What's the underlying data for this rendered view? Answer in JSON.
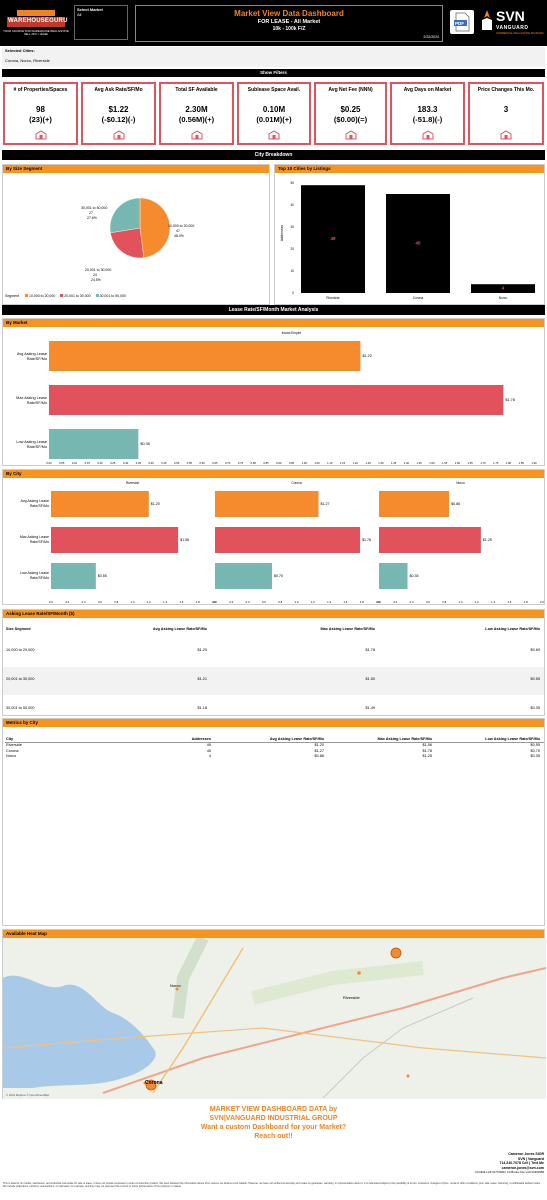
{
  "header": {
    "logo_text": "WAREHOUSEGURU",
    "logo_tagline": "YOUR SOURCE FOR WAREHOUSE REAL ESTATE",
    "logo_sub": "SELL • BUY • LEASE",
    "select_market_label": "Select Market",
    "select_market_value": "All",
    "title": "Market View Data Dashboard",
    "subtitle": "FOR LEASE - All Market",
    "range": "10k - 100k F/Z",
    "date": "2/22/2024",
    "pdf_label": "PDF",
    "svn_logo": "SVN",
    "svn_sub": "VANGUARD",
    "svn_tag": "COMMERCIAL REAL ESTATE ADVISORS"
  },
  "selected_cities": {
    "label": "Selected Cities:",
    "value": "Corona, Norco, Riverside"
  },
  "show_filters": "Show Filters",
  "kpis": [
    {
      "label": "# of Properties/Spaces",
      "v1": "98",
      "v2": "(23)(+)",
      "icon": "building-icon"
    },
    {
      "label": "Avg Ask Rate/SF/Mo",
      "v1": "$1.22",
      "v2": "(-$0.12)(-)",
      "icon": "warehouse-icon"
    },
    {
      "label": "Total SF Available",
      "v1": "2.30M",
      "v2": "(0.56M)(+)",
      "icon": "boxes-icon"
    },
    {
      "label": "Sublease Space Avail.",
      "v1": "0.10M",
      "v2": "(0.01M)(+)",
      "icon": "handshake-icon"
    },
    {
      "label": "Avg Net Fee (NNN)",
      "v1": "$0.25",
      "v2": "($0.00)(=)",
      "icon": "money-icon"
    },
    {
      "label": "Avg Days on Market",
      "v1": "183.3",
      "v2": "(-51.8)(-)",
      "icon": "calendar-icon"
    },
    {
      "label": "Price Changes This Mo.",
      "v1": "3",
      "v2": "",
      "icon": "dollar-icon"
    }
  ],
  "city_breakdown": "City Breakdown",
  "size_segment": {
    "title": "By Size Segment",
    "legend_label": "Segment",
    "colors": [
      "#f58b2c",
      "#e2525c",
      "#76b7b2"
    ],
    "slices": [
      {
        "name": "10,000 to 20,000",
        "count": "47",
        "pct": "48.0%",
        "value": 48.0
      },
      {
        "name": "20,001 to 30,000",
        "count": "24",
        "pct": "24.5%",
        "value": 24.5
      },
      {
        "name": "30,001 to 50,000",
        "count": "27",
        "pct": "27.6%",
        "value": 27.6
      }
    ]
  },
  "top_cities": {
    "title": "Top 10 Cities by Listings",
    "ylabel": "Addresses",
    "yticks": [
      "0",
      "10",
      "20",
      "30",
      "40",
      "50"
    ]
  },
  "lease_band": "Lease Rate/SF/Month Market Analysis",
  "by_market": {
    "title": "By Market",
    "header": "Inland Empire",
    "rows": [
      {
        "label": "Avg Asking Lease Rate/SF/Mo",
        "value": 1.22,
        "text": "$1.22",
        "color": "#f58b2c"
      },
      {
        "label": "Max Asking Lease Rate/SF/Mo",
        "value": 1.78,
        "text": "$1.78",
        "color": "#e2525c"
      },
      {
        "label": "Low Asking Lease Rate/SF/Mo",
        "value": 0.35,
        "text": "$0.35",
        "color": "#76b7b2"
      }
    ],
    "ticks": [
      "0.00",
      "0.05",
      "0.10",
      "0.15",
      "0.20",
      "0.25",
      "0.30",
      "0.35",
      "0.40",
      "0.45",
      "0.50",
      "0.55",
      "0.60",
      "0.65",
      "0.70",
      "0.75",
      "0.80",
      "0.85",
      "0.90",
      "0.95",
      "1.00",
      "1.05",
      "1.10",
      "1.15",
      "1.20",
      "1.25",
      "1.30",
      "1.35",
      "1.40",
      "1.45",
      "1.50",
      "1.55",
      "1.60",
      "1.65",
      "1.70",
      "1.75",
      "1.80",
      "1.85",
      "1.90"
    ]
  },
  "by_city": {
    "title": "By City",
    "row_labels": [
      "Avg Asking Lease Rate/SF/Mo",
      "Max Asking Lease Rate/SF/Mo",
      "Low Asking Lease Rate/SF/Mo"
    ],
    "cities": [
      {
        "name": "Riverside",
        "vals": [
          1.2,
          1.56,
          0.55
        ],
        "texts": [
          "$1.20",
          "$1.56",
          "$0.55"
        ]
      },
      {
        "name": "Corona",
        "vals": [
          1.27,
          1.78,
          0.7
        ],
        "texts": [
          "$1.27",
          "$1.78",
          "$0.70"
        ]
      },
      {
        "name": "Norco",
        "vals": [
          0.86,
          1.25,
          0.35
        ],
        "texts": [
          "$0.86",
          "$1.25",
          "$0.35"
        ]
      }
    ],
    "ticks": [
      "0.0",
      "0.2",
      "0.4",
      "0.6",
      "0.8",
      "1.0",
      "1.2",
      "1.4",
      "1.6",
      "1.8",
      "2.0"
    ]
  },
  "asking_table": {
    "title": "Asking Lease Rate/SF/Month ($)",
    "headers": [
      "Size Segment",
      "Avg Asking Lease Rate/SF/Mo",
      "Max Asking Lease Rate/SF/Mo",
      "Low Asking Lease Rate/SF/Mo"
    ],
    "rows": [
      [
        "10,000 to 20,000",
        "$1.29",
        "$1.78",
        "$0.69"
      ],
      [
        "20,001 to 30,000",
        "$1.21",
        "$1.50",
        "$0.55"
      ],
      [
        "30,001 to 50,000",
        "$1.18",
        "$1.49",
        "$0.35"
      ]
    ]
  },
  "metrics_table": {
    "title": "Metrics by City",
    "headers": [
      "City",
      "Addresses",
      "Avg Asking Lease Rate/SF/Mo",
      "Max Asking Lease Rate/SF/Mo",
      "Low Asking Lease Rate/SF/Mo"
    ],
    "rows": [
      [
        "Riverside",
        "49",
        "$1.20",
        "$1.56",
        "$0.55"
      ],
      [
        "Corona",
        "45",
        "$1.27",
        "$1.78",
        "$0.70"
      ],
      [
        "Norco",
        "4",
        "$0.86",
        "$1.25",
        "$0.35"
      ]
    ]
  },
  "heatmap": {
    "title": "Available Heat Map",
    "labels": [
      "Norco",
      "Corona",
      "Riverside"
    ],
    "credit": "© 2024 Mapbox © OpenStreetMap"
  },
  "footer": {
    "cta1": "MARKET VIEW DASHBOARD DATA by",
    "cta2": "SVN|VANGUARD INDUSTRIAL GROUP",
    "cta3": "Want a custom Dashboard for your Market?",
    "cta4": "Reach out!!",
    "name": "Cameron Jones SIOR",
    "company": "SVN | Vanguard",
    "phone": "714.240.7078 Cell | Text Me",
    "email": "cameron.jones@svn.com",
    "license": "CA DRE Lic# 01770908 | CA Broker Dre Lic# 01960989",
    "disclaimer": "This is data for on market, warehouse, and industrial real estate for sale or lease. It does not include proposed or under construction product. We have obtained the information above from sources we believe to be reliable. However, we have not verified its accuracy and make no guarantee, warranty, or representation about it. It is submitted subject to the possibility of errors, omissions, changes of price, rental or other conditions, prior sale, lease, financing, or withdrawal without notice. We include projections, opinions, assumptions, or estimates, for example, and they may not represent the current or future performance of the property or market."
  },
  "chart_data": [
    {
      "type": "pie",
      "title": "By Size Segment",
      "categories": [
        "10,000 to 20,000",
        "20,001 to 30,000",
        "30,001 to 50,000"
      ],
      "values": [
        47,
        24,
        27
      ],
      "percentages": [
        48.0,
        24.5,
        27.6
      ],
      "legend_placement": "bottom-left"
    },
    {
      "type": "bar",
      "title": "Top 10 Cities by Listings",
      "categories": [
        "Riverside",
        "Corona",
        "Norco"
      ],
      "values": [
        49,
        45,
        4
      ],
      "ylabel": "Addresses",
      "ylim": [
        0,
        50
      ]
    },
    {
      "type": "bar",
      "title": "By Market",
      "orientation": "horizontal",
      "categories": [
        "Avg Asking Lease Rate/SF/Mo",
        "Max Asking Lease Rate/SF/Mo",
        "Low Asking Lease Rate/SF/Mo"
      ],
      "values": [
        1.22,
        1.78,
        0.35
      ],
      "xlim": [
        0,
        1.9
      ]
    },
    {
      "type": "bar",
      "title": "By City",
      "orientation": "horizontal",
      "categories": [
        "Avg Asking Lease Rate/SF/Mo",
        "Max Asking Lease Rate/SF/Mo",
        "Low Asking Lease Rate/SF/Mo"
      ],
      "series": [
        {
          "name": "Riverside",
          "values": [
            1.2,
            1.56,
            0.55
          ]
        },
        {
          "name": "Corona",
          "values": [
            1.27,
            1.78,
            0.7
          ]
        },
        {
          "name": "Norco",
          "values": [
            0.86,
            1.25,
            0.35
          ]
        }
      ],
      "xlim": [
        0,
        2.0
      ]
    }
  ]
}
